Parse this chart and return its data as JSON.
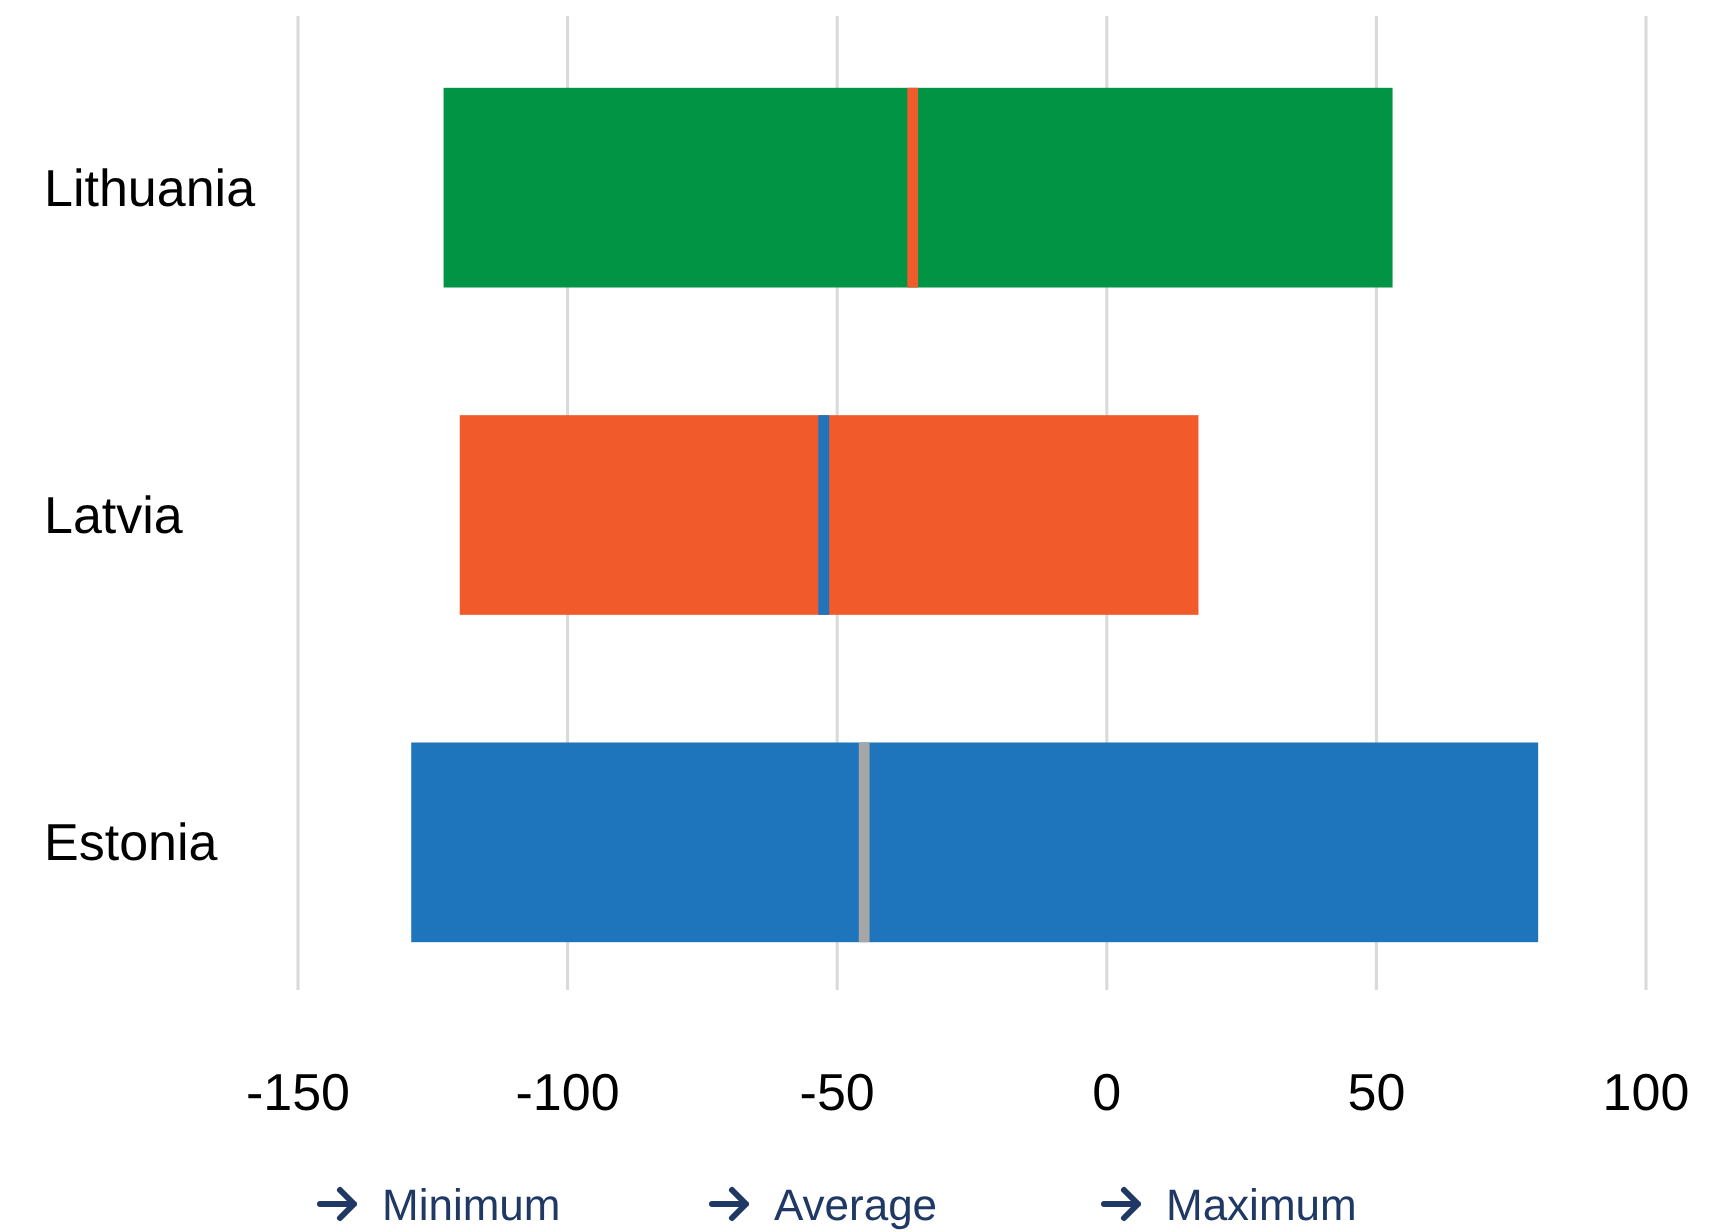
{
  "chart_data": {
    "type": "bar",
    "orientation": "horizontal",
    "categories": [
      "Lithuania",
      "Latvia",
      "Estonia"
    ],
    "series": [
      {
        "type": "bar",
        "base": [
          -123,
          -120,
          -129
        ],
        "values": [
          176,
          137,
          209
        ],
        "colors": [
          "#009444",
          "#f15a2b",
          "#1e75bb"
        ]
      },
      {
        "base": [
          -37,
          -53.5,
          -46
        ],
        "values": [
          2,
          2,
          2
        ],
        "colors": [
          "#f15a2b",
          "#1e75bb",
          "#a6a6a6"
        ]
      }
    ],
    "xlim": [
      -150,
      100
    ],
    "xticks": [
      -150,
      -100,
      -50,
      0,
      50,
      100
    ],
    "grid": "x",
    "annotations": [
      "Minimum",
      "Average",
      "Maximum"
    ]
  }
}
